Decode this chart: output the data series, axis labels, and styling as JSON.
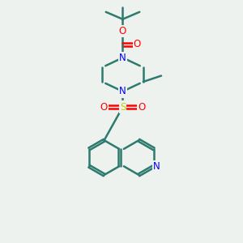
{
  "background_color": "#edf2ee",
  "bond_color": "#2d7a6e",
  "nitrogen_color": "#0000ff",
  "oxygen_color": "#ff0000",
  "sulfur_color": "#cccc00",
  "line_width": 1.8,
  "figsize": [
    3.0,
    3.0
  ],
  "dpi": 100,
  "xlim": [
    0,
    10
  ],
  "ylim": [
    0,
    10
  ]
}
